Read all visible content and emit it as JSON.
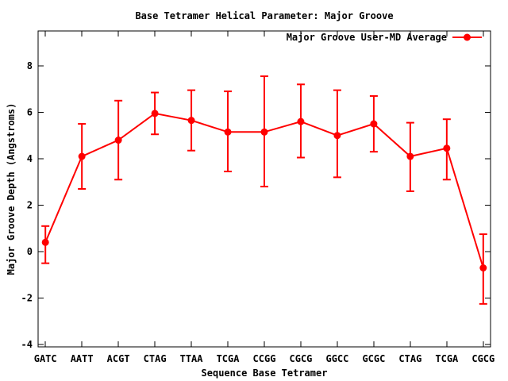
{
  "page": {
    "background": "#ffffff",
    "text_color": "#000000"
  },
  "chart_data": {
    "type": "line",
    "title": "Base Tetramer Helical Parameter: Major Groove",
    "xlabel": "Sequence Base Tetramer",
    "ylabel": "Major Groove Depth (Angstroms)",
    "legend": {
      "label": "Major Groove User-MD Average",
      "position": "top-right-inside",
      "marker": "filled-circle-on-line"
    },
    "series_color": "#ff0000",
    "axis_color": "#000000",
    "grid": false,
    "error_bars": true,
    "categories": [
      "GATC",
      "AATT",
      "ACGT",
      "CTAG",
      "TTAA",
      "TCGA",
      "CCGG",
      "CGCG",
      "GGCC",
      "GCGC",
      "CTAG",
      "TCGA",
      "CGCG"
    ],
    "values": [
      0.4,
      4.1,
      4.8,
      5.95,
      5.65,
      5.15,
      5.15,
      5.6,
      5.0,
      5.5,
      4.1,
      4.45,
      -0.7
    ],
    "error_low": [
      -0.5,
      2.7,
      3.1,
      5.05,
      4.35,
      3.45,
      2.8,
      4.05,
      3.2,
      4.3,
      2.6,
      3.1,
      -2.25
    ],
    "error_high": [
      1.1,
      5.5,
      6.5,
      6.85,
      6.95,
      6.9,
      7.55,
      7.2,
      6.95,
      6.7,
      5.55,
      5.7,
      0.75
    ],
    "yticks": [
      -4,
      -2,
      0,
      2,
      4,
      6,
      8
    ],
    "ylim": [
      -4.1,
      9.5
    ],
    "xlim": [
      0.8,
      13.2
    ]
  }
}
